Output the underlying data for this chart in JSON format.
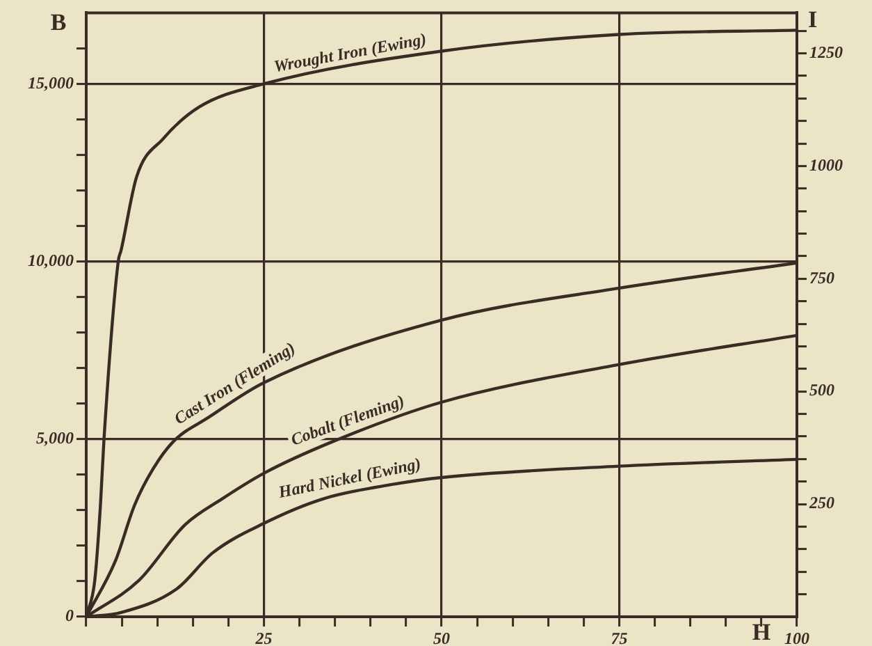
{
  "chart_data": {
    "type": "line",
    "xlabel": "H",
    "ylabel": "B",
    "y2label": "I",
    "series": [
      {
        "name": "Wrought Iron (Ewing)",
        "color": "#3a2c25",
        "x": [
          0,
          1.2,
          2,
          2.5,
          4.5,
          4.9,
          7.1,
          10.8,
          15.9,
          25,
          50,
          75,
          100
        ],
        "values": [
          0,
          1020,
          3140,
          5000,
          10000,
          10310,
          12390,
          13450,
          14350,
          15000,
          15920,
          16390,
          16510
        ]
      },
      {
        "name": "Cast Iron (Fleming)",
        "color": "#3a2c25",
        "x": [
          0,
          4.1,
          6.8,
          9.4,
          12.3,
          17.2,
          25,
          50,
          75,
          100
        ],
        "values": [
          0,
          1570,
          3140,
          4160,
          4940,
          5610,
          6590,
          8350,
          9250,
          9960
        ]
      },
      {
        "name": "Cobalt (Fleming)",
        "color": "#3a2c25",
        "x": [
          0,
          7.4,
          13.9,
          19.2,
          25,
          34.8,
          50,
          75,
          100
        ],
        "values": [
          0,
          1020,
          2590,
          3330,
          4040,
          4940,
          6040,
          7100,
          7920
        ]
      },
      {
        "name": "Hard Nickel (Ewing)",
        "color": "#3a2c25",
        "x": [
          0,
          4.9,
          12.7,
          17.8,
          25,
          33.5,
          43.2,
          50,
          75,
          100
        ],
        "values": [
          0,
          120,
          780,
          1800,
          2630,
          3330,
          3730,
          3920,
          4240,
          4430
        ]
      }
    ],
    "xlim": [
      0,
      100
    ],
    "xticks": [
      {
        "value": 0,
        "label": null
      },
      {
        "value": 5,
        "label": null
      },
      {
        "value": 10,
        "label": null
      },
      {
        "value": 15,
        "label": null
      },
      {
        "value": 20,
        "label": null
      },
      25,
      {
        "value": 30,
        "label": null
      },
      {
        "value": 35,
        "label": null
      },
      {
        "value": 40,
        "label": null
      },
      {
        "value": 45,
        "label": null
      },
      50,
      {
        "value": 55,
        "label": null
      },
      {
        "value": 60,
        "label": null
      },
      {
        "value": 65,
        "label": null
      },
      {
        "value": 70,
        "label": null
      },
      75,
      {
        "value": 80,
        "label": null
      },
      {
        "value": 85,
        "label": null
      },
      {
        "value": 90,
        "label": null
      },
      {
        "value": 95,
        "label": null
      },
      100
    ],
    "ylim": [
      0,
      17000
    ],
    "yticks": [
      0,
      {
        "value": 1000,
        "label": null
      },
      {
        "value": 2000,
        "label": null
      },
      {
        "value": 3000,
        "label": null
      },
      {
        "value": 4000,
        "label": null
      },
      {
        "value": 5000,
        "label": "5,000"
      },
      {
        "value": 6000,
        "label": null
      },
      {
        "value": 7000,
        "label": null
      },
      {
        "value": 8000,
        "label": null
      },
      {
        "value": 9000,
        "label": null
      },
      {
        "value": 10000,
        "label": "10,000"
      },
      {
        "value": 11000,
        "label": null
      },
      {
        "value": 12000,
        "label": null
      },
      {
        "value": 13000,
        "label": null
      },
      {
        "value": 14000,
        "label": null
      },
      {
        "value": 15000,
        "label": "15,000"
      },
      {
        "value": 16000,
        "label": null
      }
    ],
    "y2lim": [
      0,
      1340
    ],
    "y2ticks": [
      {
        "value": 50,
        "label": null
      },
      {
        "value": 100,
        "label": null
      },
      {
        "value": 150,
        "label": null
      },
      {
        "value": 200,
        "label": null
      },
      250,
      {
        "value": 300,
        "label": null
      },
      {
        "value": 350,
        "label": null
      },
      {
        "value": 400,
        "label": null
      },
      {
        "value": 450,
        "label": null
      },
      500,
      {
        "value": 550,
        "label": null
      },
      {
        "value": 600,
        "label": null
      },
      {
        "value": 650,
        "label": null
      },
      {
        "value": 700,
        "label": null
      },
      750,
      {
        "value": 800,
        "label": null
      },
      {
        "value": 850,
        "label": null
      },
      {
        "value": 900,
        "label": null
      },
      {
        "value": 950,
        "label": null
      },
      1000,
      {
        "value": 1050,
        "label": null
      },
      {
        "value": 1100,
        "label": null
      },
      {
        "value": 1150,
        "label": null
      },
      {
        "value": 1200,
        "label": null
      },
      1250,
      {
        "value": 1300,
        "label": null
      }
    ],
    "grid": true,
    "legend": false
  }
}
